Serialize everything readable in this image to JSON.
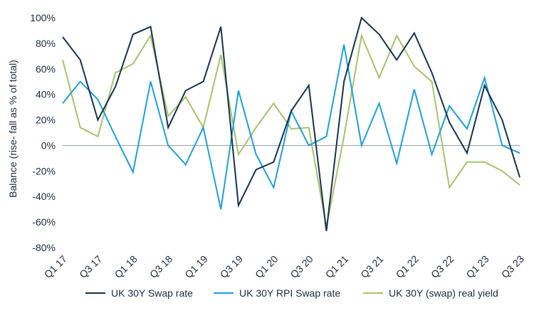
{
  "chart_data": {
    "type": "line",
    "ylabel": "Balance (rise- fall as % of total)",
    "xlabel": "",
    "ylim": [
      -80,
      100
    ],
    "yticks": [
      -80,
      -60,
      -40,
      -20,
      0,
      20,
      40,
      60,
      80,
      100
    ],
    "ytick_labels": [
      "-80%",
      "-60%",
      "-40%",
      "-20%",
      "0%",
      "20%",
      "40%",
      "60%",
      "80%",
      "100%"
    ],
    "x": [
      "Q1 17",
      "Q2 17",
      "Q3 17",
      "Q4 17",
      "Q1 18",
      "Q2 18",
      "Q3 18",
      "Q4 18",
      "Q1 19",
      "Q2 19",
      "Q3 19",
      "Q4 19",
      "Q1 20",
      "Q2 20",
      "Q3 20",
      "Q4 20",
      "Q1 21",
      "Q2 21",
      "Q3 21",
      "Q4 21",
      "Q1 22",
      "Q2 22",
      "Q3 22",
      "Q4 22",
      "Q1 23",
      "Q2 23",
      "Q3 23"
    ],
    "x_tick_labels": [
      "Q1 17",
      "",
      "Q3 17",
      "",
      "Q1 18",
      "",
      "Q3 18",
      "",
      "Q1 19",
      "",
      "Q3 19",
      "",
      "Q1 20",
      "",
      "Q3 20",
      "",
      "Q1 21",
      "",
      "Q3 21",
      "",
      "Q1 22",
      "",
      "Q3 22",
      "",
      "Q1 23",
      "",
      "Q3 23"
    ],
    "grid": false,
    "legend_position": "bottom",
    "series": [
      {
        "name": "UK 30Y Swap rate",
        "color": "#14324f",
        "values": [
          85,
          67,
          20,
          46,
          87,
          93,
          14,
          43,
          50,
          93,
          -47,
          -19,
          -13,
          27,
          47,
          -67,
          50,
          100,
          87,
          67,
          88,
          57,
          18,
          -6,
          47,
          20,
          -25
        ]
      },
      {
        "name": "UK 30Y RPI Swap rate",
        "color": "#1ca0db",
        "values": [
          33,
          50,
          36,
          7,
          -21,
          50,
          0,
          -15,
          14,
          -50,
          43,
          -7,
          -33,
          27,
          0,
          7,
          79,
          0,
          33,
          -14,
          44,
          -7,
          31,
          13,
          53,
          0,
          -6
        ]
      },
      {
        "name": "UK 30Y (swap) real yield",
        "color": "#a7c26a",
        "values": [
          67,
          14,
          7,
          57,
          64,
          86,
          23,
          38,
          14,
          71,
          -7,
          14,
          33,
          13,
          14,
          -64,
          7,
          86,
          53,
          86,
          62,
          50,
          -33,
          -13,
          -13,
          -20,
          -31
        ]
      }
    ]
  }
}
